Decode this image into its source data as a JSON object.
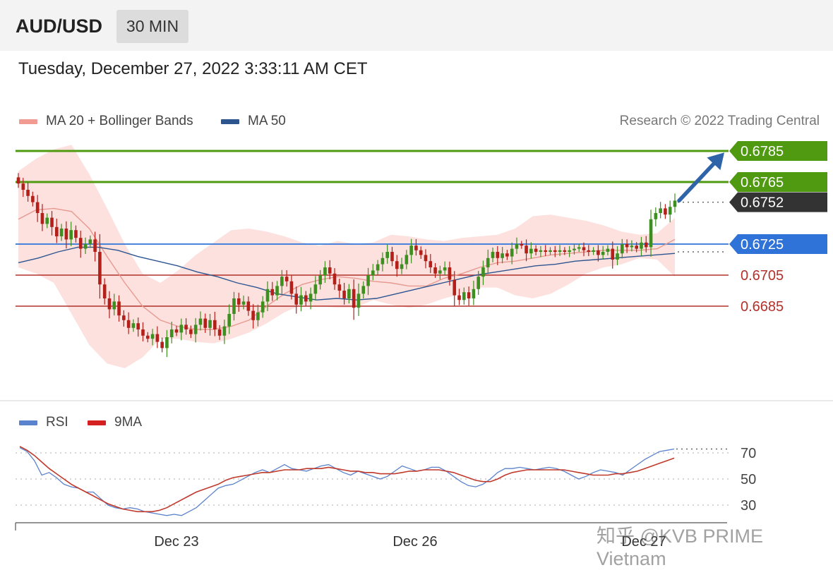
{
  "header": {
    "pair": "AUD/USD",
    "timeframe": "30 MIN"
  },
  "timestamp": "Tuesday, December 27, 2022 3:33:11 AM CET",
  "legend": {
    "ma20_label": "MA 20 + Bollinger Bands",
    "ma50_label": "MA 50",
    "rsi_label": "RSI",
    "rsi_ma_label": "9MA"
  },
  "credit": "Research © 2022 Trading Central",
  "watermark": "知乎 @KVB PRIME Vietnam",
  "colors": {
    "resistance": "#4f9a10",
    "pivot": "#2f73d8",
    "support": "#b4302a",
    "current": "#333333",
    "bollinger_fill": "#f9c9c4",
    "ma20": "#e8998f",
    "ma50": "#2d5590",
    "candle_up": "#3d8f1f",
    "candle_down": "#b3201a",
    "rsi": "#5b82cc",
    "rsi_ma": "#c0392b"
  },
  "chart_data": [
    {
      "type": "candlestick",
      "title": "",
      "x_labels": [
        "Dec 23",
        "Dec 26",
        "Dec 27"
      ],
      "ylim": [
        0.6655,
        0.6795
      ],
      "levels": [
        {
          "value": 0.6785,
          "label": "0.6785",
          "kind": "resistance"
        },
        {
          "value": 0.6765,
          "label": "0.6765",
          "kind": "resistance"
        },
        {
          "value": 0.6752,
          "label": "0.6752",
          "kind": "current"
        },
        {
          "value": 0.6725,
          "label": "0.6725",
          "kind": "pivot"
        },
        {
          "value": 0.6705,
          "label": "0.6705",
          "kind": "support"
        },
        {
          "value": 0.6685,
          "label": "0.6685",
          "kind": "support"
        }
      ],
      "forecast_arrow": {
        "from": 0.6753,
        "to": 0.6784
      },
      "closes": [
        0.6764,
        0.676,
        0.6756,
        0.6752,
        0.6745,
        0.6738,
        0.6742,
        0.6736,
        0.673,
        0.6735,
        0.6728,
        0.6734,
        0.6729,
        0.6722,
        0.6725,
        0.6728,
        0.672,
        0.6699,
        0.669,
        0.6683,
        0.6688,
        0.6679,
        0.6676,
        0.6671,
        0.6674,
        0.667,
        0.6666,
        0.6664,
        0.6667,
        0.6662,
        0.6658,
        0.6665,
        0.667,
        0.6668,
        0.6673,
        0.667,
        0.6667,
        0.6673,
        0.6677,
        0.6671,
        0.6676,
        0.667,
        0.6666,
        0.6672,
        0.668,
        0.669,
        0.6686,
        0.6688,
        0.6682,
        0.6676,
        0.6681,
        0.6688,
        0.6696,
        0.6692,
        0.6698,
        0.6704,
        0.6701,
        0.6693,
        0.6686,
        0.6692,
        0.6688,
        0.6693,
        0.6699,
        0.6705,
        0.671,
        0.6706,
        0.6699,
        0.6695,
        0.669,
        0.6696,
        0.6684,
        0.6693,
        0.6698,
        0.6705,
        0.6708,
        0.6712,
        0.6716,
        0.672,
        0.6714,
        0.6709,
        0.6712,
        0.6718,
        0.6724,
        0.6721,
        0.6718,
        0.6714,
        0.671,
        0.6706,
        0.6708,
        0.671,
        0.6702,
        0.6692,
        0.6689,
        0.6694,
        0.669,
        0.6696,
        0.6704,
        0.671,
        0.6716,
        0.672,
        0.6716,
        0.6719,
        0.6717,
        0.6722,
        0.6725,
        0.6724,
        0.6719,
        0.6722,
        0.672,
        0.6721,
        0.672,
        0.6721,
        0.672,
        0.6721,
        0.672,
        0.6721,
        0.6722,
        0.6723,
        0.6721,
        0.672,
        0.6721,
        0.6718,
        0.672,
        0.6722,
        0.6715,
        0.6719,
        0.6725,
        0.6723,
        0.6724,
        0.6722,
        0.6726,
        0.6723,
        0.6741,
        0.6745,
        0.6748,
        0.6744,
        0.6749,
        0.6753
      ],
      "bollinger": {
        "upper": [
          0.6772,
          0.678,
          0.6786,
          0.6789,
          0.677,
          0.6748,
          0.6725,
          0.6706,
          0.67,
          0.6708,
          0.6718,
          0.6726,
          0.6734,
          0.6735,
          0.6733,
          0.673,
          0.6726,
          0.6724,
          0.6727,
          0.6725,
          0.6726,
          0.6731,
          0.673,
          0.6728,
          0.6727,
          0.6729,
          0.673,
          0.6731,
          0.6735,
          0.6743,
          0.6744,
          0.6742,
          0.674,
          0.6737,
          0.6733,
          0.6731,
          0.6732,
          0.6742
        ],
        "lower": [
          0.671,
          0.6706,
          0.67,
          0.668,
          0.666,
          0.6648,
          0.6645,
          0.6652,
          0.6664,
          0.6664,
          0.6662,
          0.6661,
          0.6664,
          0.6668,
          0.6674,
          0.6681,
          0.6686,
          0.6685,
          0.6684,
          0.6684,
          0.6689,
          0.6686,
          0.6684,
          0.6686,
          0.669,
          0.6693,
          0.6697,
          0.6697,
          0.6692,
          0.669,
          0.6693,
          0.6699,
          0.6706,
          0.671,
          0.6712,
          0.6716,
          0.6715,
          0.6704
        ]
      },
      "ma20": [
        0.6741,
        0.6747,
        0.6748,
        0.6746,
        0.6735,
        0.6717,
        0.67,
        0.6685,
        0.6676,
        0.6672,
        0.667,
        0.667,
        0.6672,
        0.6676,
        0.6685,
        0.6693,
        0.6699,
        0.6702,
        0.6704,
        0.6703,
        0.6701,
        0.67,
        0.6698,
        0.6698,
        0.6703,
        0.6706,
        0.671,
        0.6713,
        0.6714,
        0.6716,
        0.6718,
        0.6719,
        0.672,
        0.6721,
        0.6721,
        0.6721,
        0.6722,
        0.6728
      ],
      "ma50": [
        0.6713,
        0.6716,
        0.672,
        0.6723,
        0.6723,
        0.6721,
        0.6717,
        0.6714,
        0.6711,
        0.6707,
        0.6704,
        0.67,
        0.6697,
        0.6693,
        0.6691,
        0.6689,
        0.669,
        0.6689,
        0.669,
        0.6693,
        0.6696,
        0.6699,
        0.6702,
        0.6705,
        0.6707,
        0.6709,
        0.6711,
        0.6712,
        0.6714,
        0.6715,
        0.6716,
        0.6717,
        0.6718,
        0.6719
      ]
    },
    {
      "type": "line",
      "title": "",
      "ylim": [
        20,
        80
      ],
      "y_ticks": [
        70,
        50,
        30
      ],
      "series": [
        {
          "name": "RSI",
          "values": [
            74,
            71,
            64,
            53,
            55,
            51,
            46,
            44,
            43,
            40,
            40,
            35,
            30,
            28,
            27,
            28,
            27,
            25,
            24,
            23,
            22,
            23,
            22,
            25,
            28,
            33,
            38,
            43,
            45,
            46,
            49,
            52,
            55,
            57,
            55,
            58,
            61,
            58,
            57,
            56,
            58,
            60,
            61,
            58,
            55,
            53,
            56,
            54,
            52,
            50,
            52,
            56,
            60,
            58,
            56,
            57,
            59,
            59,
            56,
            52,
            48,
            45,
            44,
            46,
            50,
            55,
            58,
            58,
            59,
            58,
            57,
            58,
            59,
            58,
            56,
            53,
            50,
            52,
            55,
            57,
            56,
            55,
            53,
            57,
            61,
            65,
            68,
            71,
            72,
            73
          ]
        },
        {
          "name": "9MA",
          "values": [
            75,
            72,
            68,
            63,
            58,
            54,
            50,
            46,
            43,
            40,
            37,
            34,
            31,
            29,
            27,
            26,
            25,
            25,
            25,
            26,
            28,
            31,
            34,
            37,
            40,
            42,
            44,
            46,
            49,
            51,
            52,
            53,
            54,
            55,
            55,
            56,
            57,
            57,
            57,
            58,
            58,
            58,
            59,
            58,
            57,
            56,
            56,
            55,
            55,
            54,
            54,
            54,
            55,
            56,
            56,
            57,
            57,
            57,
            56,
            55,
            53,
            51,
            49,
            48,
            48,
            50,
            53,
            55,
            56,
            57,
            57,
            57,
            57,
            57,
            57,
            56,
            55,
            54,
            53,
            53,
            53,
            54,
            54,
            55,
            56,
            58,
            60,
            62,
            64,
            66
          ]
        }
      ]
    }
  ]
}
